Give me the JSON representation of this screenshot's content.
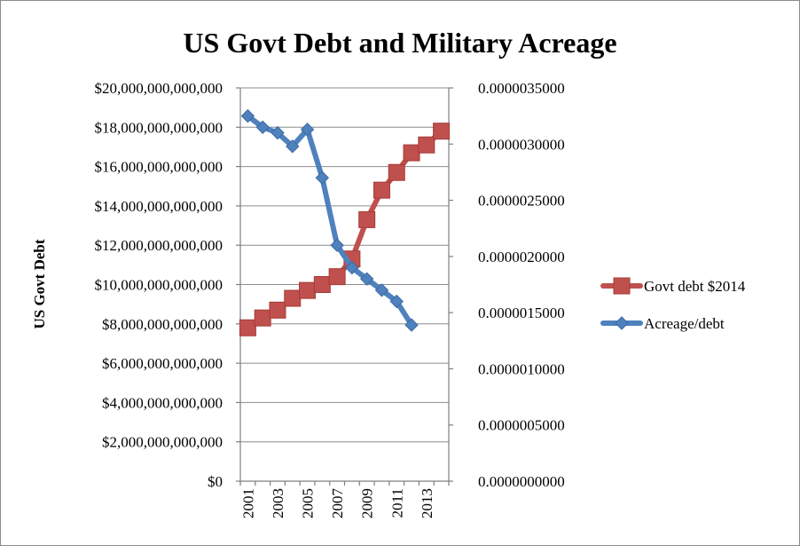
{
  "chart_data": {
    "type": "line",
    "title": "US Govt Debt and Military Acreage",
    "ylabel": "US Govt Debt",
    "y2label": "",
    "xlabel": "",
    "x": [
      2001,
      2002,
      2003,
      2004,
      2005,
      2006,
      2007,
      2008,
      2009,
      2010,
      2011,
      2012,
      2013,
      2014
    ],
    "x_tick_labels": [
      "2001",
      "2003",
      "2005",
      "2007",
      "2009",
      "2011",
      "2013"
    ],
    "ylim": [
      0,
      20000000000000
    ],
    "y_tick_labels": [
      "$0",
      "$2,000,000,000,000",
      "$4,000,000,000,000",
      "$6,000,000,000,000",
      "$8,000,000,000,000",
      "$10,000,000,000,000",
      "$12,000,000,000,000",
      "$14,000,000,000,000",
      "$16,000,000,000,000",
      "$18,000,000,000,000",
      "$20,000,000,000,000"
    ],
    "y2lim": [
      0,
      3.5e-06
    ],
    "y2_tick_labels": [
      "0.0000000000",
      "0.0000005000",
      "0.0000010000",
      "0.0000015000",
      "0.0000020000",
      "0.0000025000",
      "0.0000030000",
      "0.0000035000"
    ],
    "grid": true,
    "legend_position": "right",
    "series": [
      {
        "name": "Govt debt $2014",
        "axis": "left",
        "color": "#c0504d",
        "border_color": "#a33c39",
        "marker": "square",
        "values": [
          7800000000000,
          8300000000000,
          8700000000000,
          9300000000000,
          9700000000000,
          10000000000000,
          10400000000000,
          11300000000000,
          13300000000000,
          14800000000000,
          15700000000000,
          16700000000000,
          17100000000000,
          17800000000000
        ]
      },
      {
        "name": "Acreage/debt",
        "axis": "right",
        "color": "#4f81bd",
        "border_color": "#3a6aa5",
        "marker": "diamond",
        "values": [
          3.25e-06,
          3.15e-06,
          3.1e-06,
          2.98e-06,
          3.13e-06,
          2.7e-06,
          2.1e-06,
          1.9e-06,
          1.8e-06,
          1.7e-06,
          1.6e-06,
          1.39e-06,
          null,
          null
        ]
      }
    ]
  }
}
